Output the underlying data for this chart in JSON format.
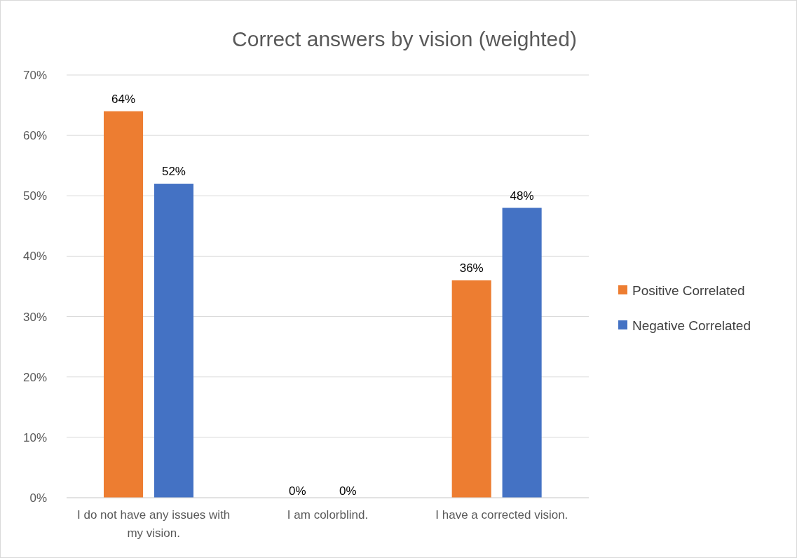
{
  "chart_data": {
    "type": "bar",
    "title": "Correct answers by vision (weighted)",
    "categories": [
      "I do not have any issues with my vision.",
      "I am colorblind.",
      "I have a corrected vision."
    ],
    "series": [
      {
        "name": "Positive Correlated",
        "color": "#ed7d31",
        "values": [
          64,
          0,
          36
        ],
        "value_labels": [
          "64%",
          "0%",
          "36%"
        ]
      },
      {
        "name": "Negative Correlated",
        "color": "#4472c4",
        "values": [
          52,
          0,
          48
        ],
        "value_labels": [
          "52%",
          "0%",
          "48%"
        ]
      }
    ],
    "ylim": [
      0,
      70
    ],
    "yticks": [
      {
        "value": 0,
        "label": "0%"
      },
      {
        "value": 10,
        "label": "10%"
      },
      {
        "value": 20,
        "label": "20%"
      },
      {
        "value": 30,
        "label": "30%"
      },
      {
        "value": 40,
        "label": "40%"
      },
      {
        "value": 50,
        "label": "50%"
      },
      {
        "value": 60,
        "label": "60%"
      },
      {
        "value": 70,
        "label": "70%"
      }
    ],
    "grid": "y",
    "legend": "right"
  }
}
